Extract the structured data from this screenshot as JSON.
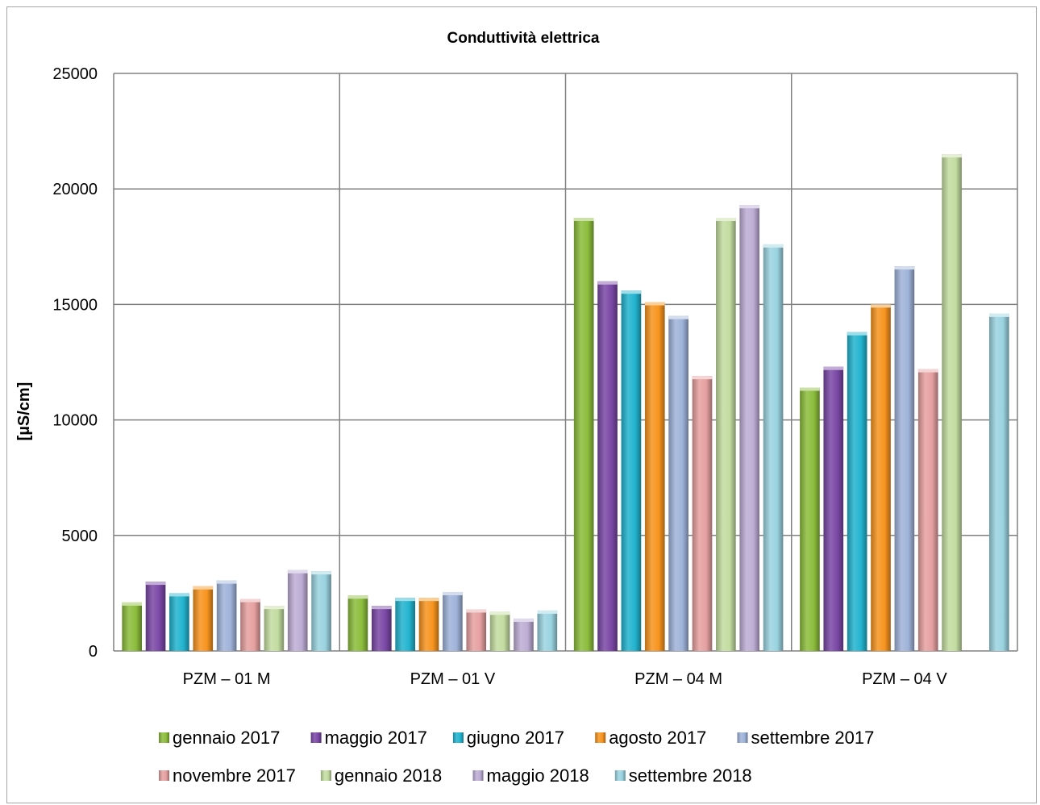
{
  "chart_data": {
    "type": "bar",
    "title": "Conduttività elettrica",
    "xlabel": "",
    "ylabel": "[µS/cm]",
    "ylim": [
      0,
      25000
    ],
    "yticks": [
      "0",
      "5000",
      "10000",
      "15000",
      "20000",
      "25000"
    ],
    "grid": true,
    "legend_position": "bottom",
    "categories": [
      "PZM – 01 M",
      "PZM – 01 V",
      "PZM – 04 M",
      "PZM – 04 V"
    ],
    "series": [
      {
        "name": "gennaio 2017",
        "color": "#8cbd3c",
        "values": [
          2100,
          2400,
          18750,
          11400
        ]
      },
      {
        "name": "maggio 2017",
        "color": "#7a48a6",
        "values": [
          3000,
          1950,
          16000,
          12300
        ]
      },
      {
        "name": "giugno 2017",
        "color": "#22b4cf",
        "values": [
          2500,
          2300,
          15600,
          13800
        ]
      },
      {
        "name": "agosto 2017",
        "color": "#f7941e",
        "values": [
          2800,
          2300,
          15100,
          15000
        ]
      },
      {
        "name": "settembre 2017",
        "color": "#9fb3d9",
        "values": [
          3050,
          2550,
          14500,
          16650
        ]
      },
      {
        "name": "novembre 2017",
        "color": "#e6a0a0",
        "values": [
          2250,
          1800,
          11900,
          12200
        ]
      },
      {
        "name": "gennaio 2018",
        "color": "#c3dca0",
        "values": [
          1950,
          1700,
          18750,
          21500
        ]
      },
      {
        "name": "maggio 2018",
        "color": "#bdadd5",
        "values": [
          3500,
          1400,
          19300,
          null
        ]
      },
      {
        "name": "settembre 2018",
        "color": "#9ad3e0",
        "values": [
          3450,
          1750,
          17600,
          14600
        ]
      }
    ]
  }
}
